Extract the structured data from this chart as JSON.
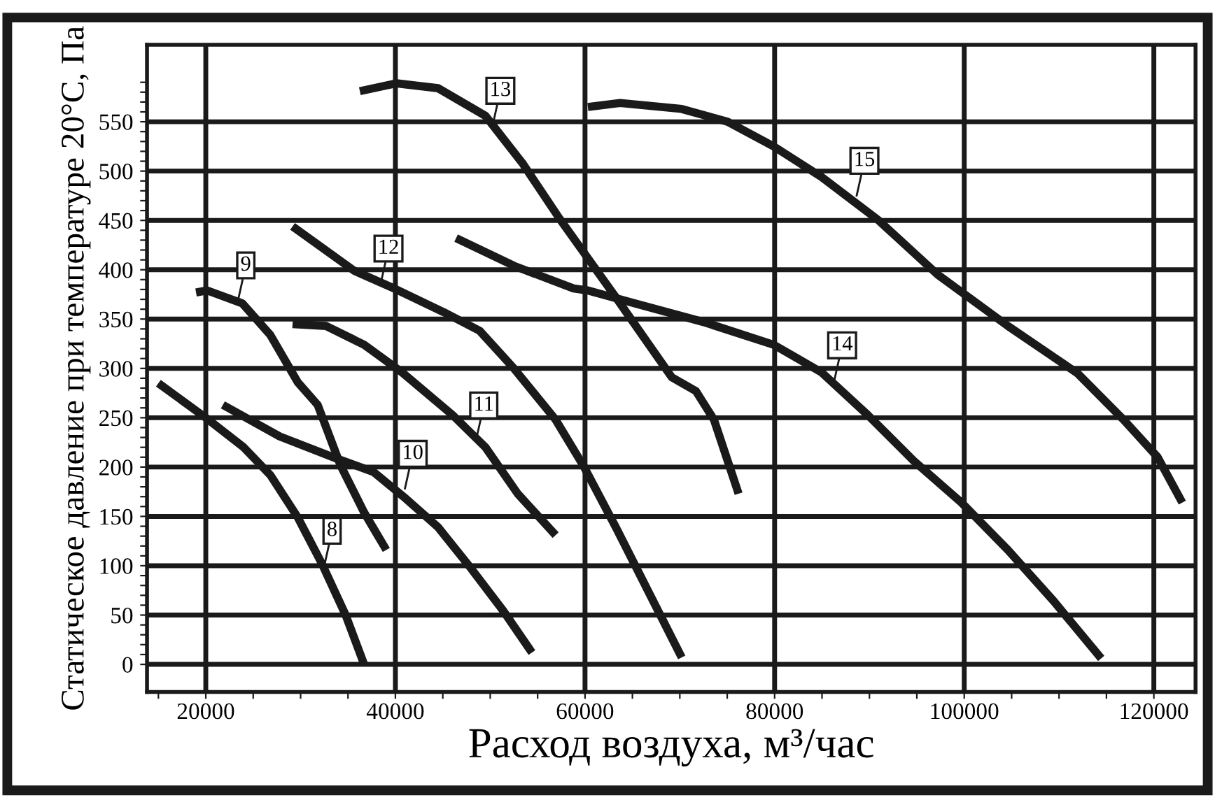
{
  "chart_data": {
    "type": "line",
    "xlabel": "Расход воздуха, м³/час",
    "ylabel": "Статическое давление при температуре 20°С, Па",
    "xlim": [
      13800,
      124400
    ],
    "ylim": [
      -28,
      628
    ],
    "xticks": [
      {
        "value": 15000,
        "label": null
      },
      20000,
      {
        "value": 25000,
        "label": null
      },
      {
        "value": 30000,
        "label": null
      },
      {
        "value": 35000,
        "label": null
      },
      40000,
      {
        "value": 45000,
        "label": null
      },
      {
        "value": 50000,
        "label": null
      },
      {
        "value": 55000,
        "label": null
      },
      60000,
      {
        "value": 65000,
        "label": null
      },
      {
        "value": 70000,
        "label": null
      },
      {
        "value": 75000,
        "label": null
      },
      80000,
      {
        "value": 85000,
        "label": null
      },
      {
        "value": 90000,
        "label": null
      },
      {
        "value": 95000,
        "label": null
      },
      100000,
      {
        "value": 105000,
        "label": null
      },
      {
        "value": 110000,
        "label": null
      },
      {
        "value": 115000,
        "label": null
      },
      120000
    ],
    "yticks": [
      0,
      {
        "value": 10,
        "label": null
      },
      {
        "value": 20,
        "label": null
      },
      {
        "value": 30,
        "label": null
      },
      {
        "value": 40,
        "label": null
      },
      50,
      {
        "value": 60,
        "label": null
      },
      {
        "value": 70,
        "label": null
      },
      {
        "value": 80,
        "label": null
      },
      {
        "value": 90,
        "label": null
      },
      100,
      {
        "value": 110,
        "label": null
      },
      {
        "value": 120,
        "label": null
      },
      {
        "value": 130,
        "label": null
      },
      {
        "value": 140,
        "label": null
      },
      150,
      {
        "value": 160,
        "label": null
      },
      {
        "value": 170,
        "label": null
      },
      {
        "value": 180,
        "label": null
      },
      {
        "value": 190,
        "label": null
      },
      200,
      {
        "value": 210,
        "label": null
      },
      {
        "value": 220,
        "label": null
      },
      {
        "value": 230,
        "label": null
      },
      {
        "value": 240,
        "label": null
      },
      250,
      {
        "value": 260,
        "label": null
      },
      {
        "value": 270,
        "label": null
      },
      {
        "value": 280,
        "label": null
      },
      {
        "value": 290,
        "label": null
      },
      300,
      {
        "value": 310,
        "label": null
      },
      {
        "value": 320,
        "label": null
      },
      {
        "value": 330,
        "label": null
      },
      {
        "value": 340,
        "label": null
      },
      350,
      {
        "value": 360,
        "label": null
      },
      {
        "value": 370,
        "label": null
      },
      {
        "value": 380,
        "label": null
      },
      {
        "value": 390,
        "label": null
      },
      400,
      {
        "value": 410,
        "label": null
      },
      {
        "value": 420,
        "label": null
      },
      {
        "value": 430,
        "label": null
      },
      {
        "value": 440,
        "label": null
      },
      450,
      {
        "value": 460,
        "label": null
      },
      {
        "value": 470,
        "label": null
      },
      {
        "value": 480,
        "label": null
      },
      {
        "value": 490,
        "label": null
      },
      500,
      {
        "value": 510,
        "label": null
      },
      {
        "value": 520,
        "label": null
      },
      {
        "value": 530,
        "label": null
      },
      {
        "value": 540,
        "label": null
      },
      550,
      {
        "value": 560,
        "label": null
      },
      {
        "value": 570,
        "label": null
      },
      {
        "value": 580,
        "label": null
      },
      {
        "value": 590,
        "label": null
      }
    ],
    "grid": true,
    "legend": false,
    "marker": "none",
    "line_style": "solid",
    "series": [
      {
        "color": "#1a1a1a",
        "x": [
          15000,
          20000,
          24000,
          26800,
          29700,
          32250,
          34750,
          36700
        ],
        "values": [
          285,
          250,
          220,
          192,
          149,
          102,
          50,
          0
        ]
      },
      {
        "color": "#1a1a1a",
        "x": [
          18970,
          20150,
          23840,
          26800,
          29700,
          31800,
          34200,
          36700,
          39040
        ],
        "values": [
          377,
          379,
          366,
          334,
          286,
          263,
          202,
          154,
          116
        ]
      },
      {
        "color": "#1a1a1a",
        "x": [
          21800,
          27800,
          33700,
          37700,
          41100,
          44500,
          48000,
          51400,
          54400
        ],
        "values": [
          263,
          231,
          209,
          195,
          168,
          139,
          97,
          54,
          12
        ]
      },
      {
        "color": "#1a1a1a",
        "x": [
          29150,
          32700,
          36700,
          40700,
          46000,
          49500,
          52900,
          56900
        ],
        "values": [
          345,
          343,
          324,
          296,
          253,
          220,
          173,
          131
        ]
      },
      {
        "color": "#1a1a1a",
        "x": [
          29150,
          35650,
          40100,
          45100,
          48900,
          52500,
          56900,
          59850,
          63250,
          70200
        ],
        "values": [
          444,
          399,
          380,
          357,
          338,
          300,
          248,
          201,
          139,
          7
        ]
      },
      {
        "color": "#1a1a1a",
        "x": [
          36250,
          40100,
          44500,
          49500,
          53400,
          57300,
          63250,
          69150,
          71700,
          73600,
          76200
        ],
        "values": [
          581,
          589,
          584,
          556,
          508,
          452,
          372,
          291,
          277,
          248,
          173
        ]
      },
      {
        "color": "#1a1a1a",
        "x": [
          46400,
          52500,
          58800,
          60300,
          65200,
          72500,
          79900,
          84950,
          89800,
          94700,
          99700,
          104600,
          109450,
          114450
        ],
        "values": [
          432,
          404,
          381,
          379,
          366,
          347,
          324,
          296,
          253,
          206,
          164,
          116,
          64,
          6
        ]
      },
      {
        "color": "#1a1a1a",
        "x": [
          60300,
          63700,
          70200,
          75050,
          79900,
          84950,
          90850,
          97200,
          104600,
          111950,
          116800,
          120400,
          123000
        ],
        "values": [
          565,
          569,
          563,
          550,
          525,
          494,
          451,
          395,
          343,
          295,
          248,
          210,
          164
        ]
      }
    ],
    "annotations": [
      {
        "text": "8",
        "x": 32500,
        "y": 100
      },
      {
        "text": "9",
        "x": 23400,
        "y": 369
      },
      {
        "text": "10",
        "x": 41000,
        "y": 178
      },
      {
        "text": "11",
        "x": 48500,
        "y": 227
      },
      {
        "text": "12",
        "x": 38450,
        "y": 386
      },
      {
        "text": "13",
        "x": 50250,
        "y": 546
      },
      {
        "text": "14",
        "x": 86300,
        "y": 288
      },
      {
        "text": "15",
        "x": 88650,
        "y": 475
      }
    ]
  }
}
